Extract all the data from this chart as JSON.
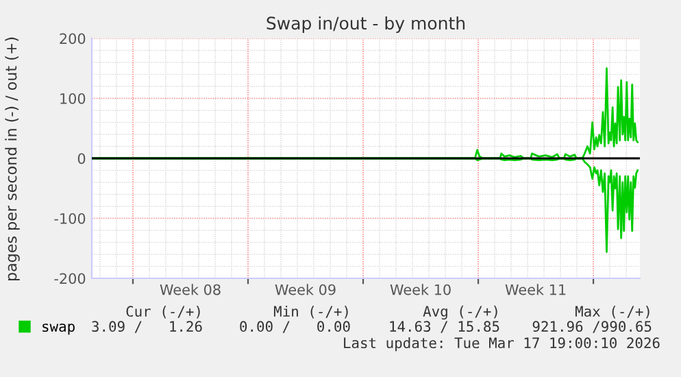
{
  "chart_data": {
    "type": "line",
    "title": "Swap in/out - by month",
    "ylabel": "pages per second in (-) / out (+)",
    "xlim": [
      "2026-02-13T12:00",
      "2026-03-18T19:55"
    ],
    "ylim": [
      -200,
      200
    ],
    "yticks": [
      -200,
      -100,
      0,
      100,
      200
    ],
    "xticks": [
      {
        "value": "2026-02-16",
        "label": null
      },
      {
        "value": "2026-02-19T12:00",
        "label": "Week 08"
      },
      {
        "value": "2026-02-23",
        "label": null
      },
      {
        "value": "2026-02-26T12:00",
        "label": "Week 09"
      },
      {
        "value": "2026-03-02",
        "label": null
      },
      {
        "value": "2026-03-05T12:00",
        "label": "Week 10"
      },
      {
        "value": "2026-03-09",
        "label": null
      },
      {
        "value": "2026-03-12T12:00",
        "label": "Week 11"
      },
      {
        "value": "2026-03-16",
        "label": null
      }
    ],
    "grid": true,
    "legend": "bottom",
    "ref_lines": [
      {
        "axis": "y",
        "value": 0,
        "color": "#000000"
      }
    ],
    "annotations": [
      "Cur (-/+)",
      "Min (-/+)",
      "Avg (-/+)",
      "Max (-/+)",
      "3.09 /   1.26",
      "0.00 /   0.00",
      "14.63 / 15.85",
      "921.96 /990.65",
      "Last update: Tue Mar 17 19:00:10 2026"
    ],
    "x": [
      "2026-02-13T12:00",
      "2026-03-08T19:12",
      "2026-03-08T22:34",
      "2026-03-09T01:55",
      "2026-03-09T07:12",
      "2026-03-10T07:55",
      "2026-03-10T09:36",
      "2026-03-10T14:24",
      "2026-03-10T21:36",
      "2026-03-11T04:48",
      "2026-03-11T13:55",
      "2026-03-11T18:29",
      "2026-03-12T04:34",
      "2026-03-12T06:29",
      "2026-03-12T16:34",
      "2026-03-13T02:24",
      "2026-03-13T12:00",
      "2026-03-13T19:12",
      "2026-03-13T22:34",
      "2026-03-14T05:17",
      "2026-03-14T07:12",
      "2026-03-14T13:55",
      "2026-03-14T20:38",
      "2026-03-14T23:17",
      "2026-03-15T07:55",
      "2026-03-15T11:17",
      "2026-03-15T15:22",
      "2026-03-15T19:12",
      "2026-03-15T22:34",
      "2026-03-16T01:26",
      "2026-03-16T04:05",
      "2026-03-16T06:00",
      "2026-03-16T08:38",
      "2026-03-16T11:17",
      "2026-03-16T13:55",
      "2026-03-16T16:34",
      "2026-03-16T19:26",
      "2026-03-16T22:05",
      "2026-03-17T00:00",
      "2026-03-17T01:55",
      "2026-03-17T04:05",
      "2026-03-17T06:00",
      "2026-03-17T07:55",
      "2026-03-17T10:05",
      "2026-03-17T12:00",
      "2026-03-17T14:38",
      "2026-03-17T16:34",
      "2026-03-17T18:43",
      "2026-03-17T20:38",
      "2026-03-17T22:34",
      "2026-03-18T00:43",
      "2026-03-18T02:38",
      "2026-03-18T04:34",
      "2026-03-18T06:43",
      "2026-03-18T08:38",
      "2026-03-18T10:34",
      "2026-03-18T12:43",
      "2026-03-18T14:38",
      "2026-03-18T16:34"
    ],
    "series": [
      {
        "name": "swap",
        "color": "#00cc00",
        "values": [
          0,
          0,
          14,
          3,
          0,
          0,
          8,
          3,
          5,
          2,
          4,
          0,
          0,
          8,
          3,
          5,
          2,
          7,
          0,
          0,
          7,
          3,
          6,
          0,
          0,
          8,
          20,
          8,
          60,
          15,
          35,
          20,
          39,
          25,
          77,
          20,
          150,
          25,
          43,
          30,
          85,
          20,
          58,
          25,
          119,
          30,
          130,
          40,
          69,
          30,
          127,
          30,
          66,
          35,
          123,
          30,
          58,
          30,
          27
        ]
      },
      {
        "color": "#00cc00",
        "values": [
          0,
          0,
          -3,
          -2,
          0,
          0,
          -2,
          -3,
          -2,
          -3,
          -2,
          0,
          0,
          -2,
          -3,
          -2,
          -3,
          -2,
          0,
          0,
          -2,
          -3,
          -2,
          0,
          0,
          -6,
          -10,
          -15,
          -34,
          -15,
          -25,
          -20,
          -45,
          -20,
          -56,
          -25,
          -156,
          -30,
          -40,
          -20,
          -87,
          -30,
          -50,
          -25,
          -118,
          -30,
          -133,
          -40,
          -121,
          -30,
          -90,
          -30,
          -102,
          -40,
          -121,
          -30,
          -49,
          -25,
          -20
        ]
      }
    ]
  }
}
